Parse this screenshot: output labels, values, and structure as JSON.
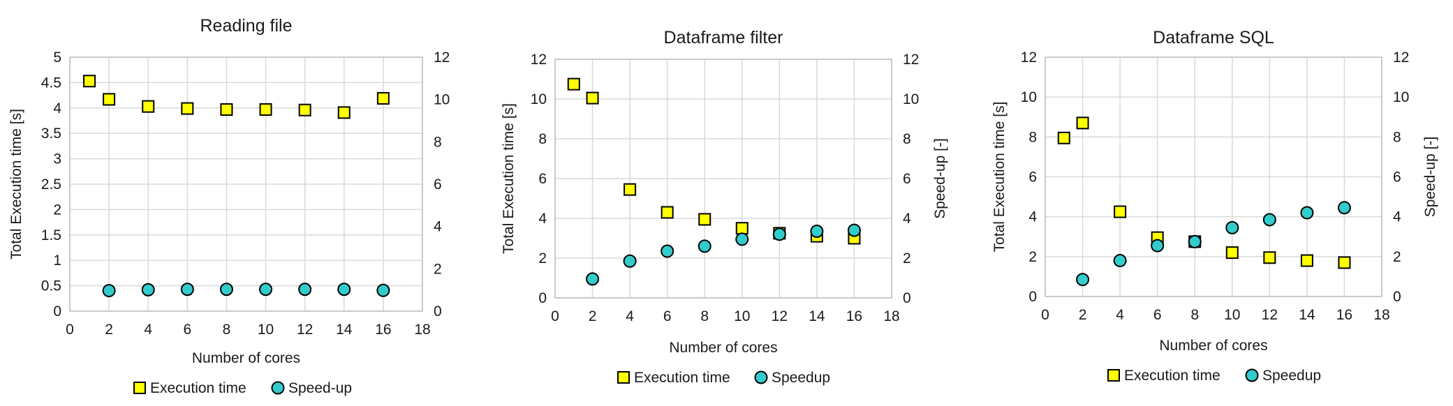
{
  "chart_data": [
    {
      "type": "scatter",
      "title": "Reading file",
      "xlabel": "Number of cores",
      "ylabel": "Total Execution time [s]",
      "y2label": "",
      "xlim": [
        0,
        18
      ],
      "ylim": [
        0,
        5
      ],
      "y2lim": [
        0,
        12
      ],
      "xticks": [
        "0",
        "2",
        "4",
        "6",
        "8",
        "10",
        "12",
        "14",
        "16",
        "18"
      ],
      "yticks": [
        "0",
        "0.5",
        "1",
        "1.5",
        "2",
        "2.5",
        "3",
        "3.5",
        "4",
        "4.5",
        "5"
      ],
      "y2ticks": [
        "0",
        "2",
        "4",
        "6",
        "8",
        "10",
        "12"
      ],
      "grid": true,
      "legend": "bottom",
      "series": [
        {
          "name": "Execution time",
          "axis": "left",
          "marker": "square",
          "color": "#ffff00",
          "x": [
            1,
            2,
            4,
            6,
            8,
            10,
            12,
            14,
            16
          ],
          "y": [
            4.53,
            4.17,
            4.03,
            3.99,
            3.97,
            3.97,
            3.96,
            3.91,
            4.19
          ]
        },
        {
          "name": "Speed-up",
          "axis": "right",
          "marker": "circle",
          "color": "#33cccc",
          "x": [
            2,
            4,
            6,
            8,
            10,
            12,
            14,
            16
          ],
          "y": [
            0.97,
            1.01,
            1.03,
            1.03,
            1.03,
            1.03,
            1.03,
            0.98
          ]
        }
      ]
    },
    {
      "type": "scatter",
      "title": "Dataframe filter",
      "xlabel": "Number of cores",
      "ylabel": "Total Execution time [s]",
      "y2label": "Speed-up [-]",
      "xlim": [
        0,
        18
      ],
      "ylim": [
        0,
        12
      ],
      "y2lim": [
        0,
        12
      ],
      "xticks": [
        "0",
        "2",
        "4",
        "6",
        "8",
        "10",
        "12",
        "14",
        "16",
        "18"
      ],
      "yticks": [
        "0",
        "2",
        "4",
        "6",
        "8",
        "10",
        "12"
      ],
      "y2ticks": [
        "0",
        "2",
        "4",
        "6",
        "8",
        "10",
        "12"
      ],
      "grid": true,
      "legend": "bottom",
      "series": [
        {
          "name": "Execution time",
          "axis": "left",
          "marker": "square",
          "color": "#ffff00",
          "x": [
            1,
            2,
            4,
            6,
            8,
            10,
            12,
            14,
            16
          ],
          "y": [
            10.75,
            10.05,
            5.45,
            4.3,
            3.95,
            3.5,
            3.25,
            3.1,
            3.0
          ]
        },
        {
          "name": "Speedup",
          "axis": "right",
          "marker": "circle",
          "color": "#33cccc",
          "x": [
            2,
            4,
            6,
            8,
            10,
            12,
            14,
            16
          ],
          "y": [
            0.95,
            1.85,
            2.35,
            2.6,
            2.95,
            3.2,
            3.35,
            3.4
          ]
        }
      ]
    },
    {
      "type": "scatter",
      "title": "Dataframe SQL",
      "xlabel": "Number of cores",
      "ylabel": "Total Execution time [s]",
      "y2label": "Speed-up [-]",
      "xlim": [
        0,
        18
      ],
      "ylim": [
        0,
        12
      ],
      "y2lim": [
        0,
        12
      ],
      "xticks": [
        "0",
        "2",
        "4",
        "6",
        "8",
        "10",
        "12",
        "14",
        "16",
        "18"
      ],
      "yticks": [
        "0",
        "2",
        "4",
        "6",
        "8",
        "10",
        "12"
      ],
      "y2ticks": [
        "0",
        "2",
        "4",
        "6",
        "8",
        "10",
        "12"
      ],
      "grid": true,
      "legend": "bottom",
      "series": [
        {
          "name": "Execution time",
          "axis": "left",
          "marker": "square",
          "color": "#ffff00",
          "x": [
            1,
            2,
            4,
            6,
            8,
            10,
            12,
            14,
            16
          ],
          "y": [
            7.95,
            8.7,
            4.25,
            2.95,
            2.75,
            2.2,
            1.95,
            1.8,
            1.7
          ]
        },
        {
          "name": "Speedup",
          "axis": "right",
          "marker": "circle",
          "color": "#33cccc",
          "x": [
            2,
            4,
            6,
            8,
            10,
            12,
            14,
            16
          ],
          "y": [
            0.85,
            1.8,
            2.55,
            2.75,
            3.45,
            3.85,
            4.2,
            4.45
          ]
        }
      ]
    }
  ]
}
